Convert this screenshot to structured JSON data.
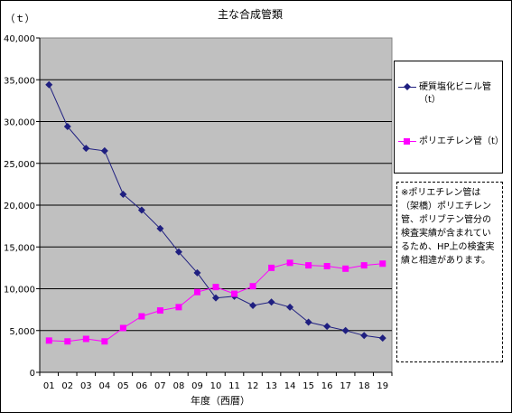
{
  "chart_data": {
    "type": "line",
    "title": "主な合成管類",
    "xlabel": "年度（西暦）",
    "ylabel": "（ｔ）",
    "categories": [
      "01",
      "02",
      "03",
      "04",
      "05",
      "06",
      "07",
      "08",
      "09",
      "10",
      "11",
      "12",
      "13",
      "14",
      "15",
      "16",
      "17",
      "18",
      "19"
    ],
    "y_ticks": [
      "0",
      "5,000",
      "10,000",
      "15,000",
      "20,000",
      "25,000",
      "30,000",
      "35,000",
      "40,000"
    ],
    "ylim": [
      0,
      40000
    ],
    "grid": "horizontal",
    "legend_position": "right",
    "series": [
      {
        "name": "硬質塩化ビニル管（t）",
        "color": "#1f1f80",
        "marker": "diamond",
        "values": [
          34400,
          29400,
          26800,
          26500,
          21300,
          19400,
          17200,
          14400,
          11900,
          8900,
          9100,
          8000,
          8400,
          7800,
          6000,
          5500,
          5000,
          4400,
          4100
        ]
      },
      {
        "name": "ポリエチレン管（t）",
        "color": "#ff00ff",
        "marker": "square",
        "values": [
          3800,
          3700,
          4000,
          3700,
          5300,
          6700,
          7400,
          7800,
          9600,
          10200,
          9400,
          10300,
          12500,
          13100,
          12800,
          12700,
          12400,
          12800,
          13000
        ]
      }
    ],
    "plot_background": "#c0c0c0"
  },
  "note": "※ポリエチレン管は（架橋）ポリエチレン管、ポリブテン管分の検査実績が含まれているため、HP上の検査実績と相違があります。"
}
